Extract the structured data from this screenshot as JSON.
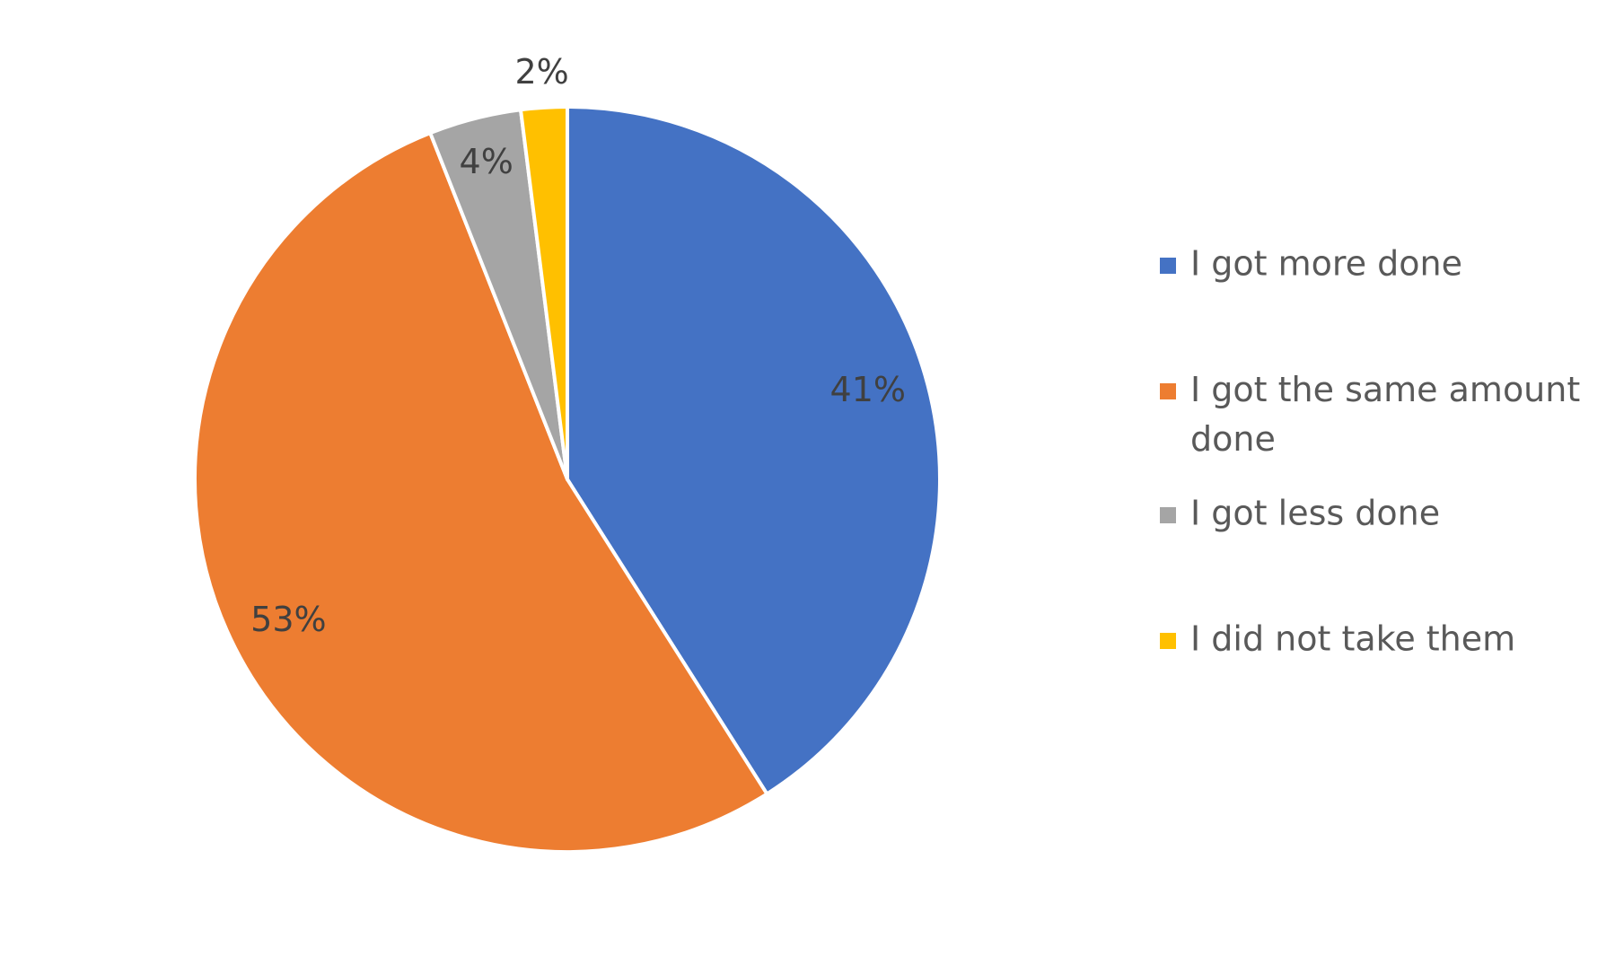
{
  "chart_data": {
    "type": "pie",
    "categories": [
      "I got more done",
      "I got the same amount done",
      "I got less done",
      "I did not take them"
    ],
    "values": [
      41,
      53,
      4,
      2
    ],
    "value_labels": [
      "41%",
      "53%",
      "4%",
      "2%"
    ],
    "colors": [
      "#4472c4",
      "#ed7d31",
      "#a5a5a5",
      "#ffc000"
    ],
    "legend": "right"
  }
}
